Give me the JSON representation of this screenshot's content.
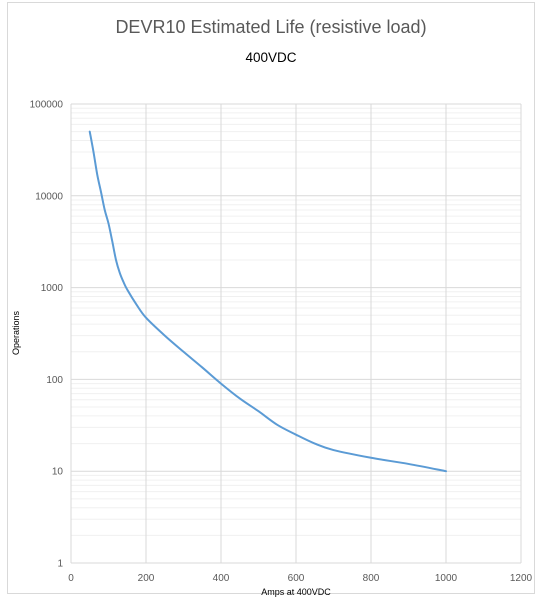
{
  "chart_data": {
    "type": "line",
    "title": "DEVR10 Estimated Life (resistive load)",
    "subtitle": "400VDC",
    "xlabel": "Amps at 400VDC",
    "ylabel": "Operations",
    "xlim": [
      0,
      1200
    ],
    "ylim": [
      1,
      100000
    ],
    "yscale": "log",
    "x_ticks": [
      "0",
      "200",
      "400",
      "600",
      "800",
      "1000",
      "1200"
    ],
    "y_ticks": [
      "1",
      "10",
      "100",
      "1000",
      "10000",
      "100000"
    ],
    "grid": true,
    "series_color": "#5b9bd5",
    "series": [
      {
        "x": [
          50,
          60,
          70,
          80,
          90,
          100,
          110,
          120,
          130,
          140,
          150,
          175,
          200,
          250,
          300,
          350,
          400,
          450,
          500,
          550,
          600,
          650,
          700,
          800,
          900,
          1000
        ],
        "y": [
          50000,
          30000,
          17000,
          11000,
          7000,
          5000,
          3200,
          2000,
          1450,
          1150,
          950,
          650,
          470,
          300,
          200,
          135,
          90,
          62,
          45,
          32,
          25,
          20,
          17,
          14,
          12,
          10
        ]
      }
    ]
  }
}
